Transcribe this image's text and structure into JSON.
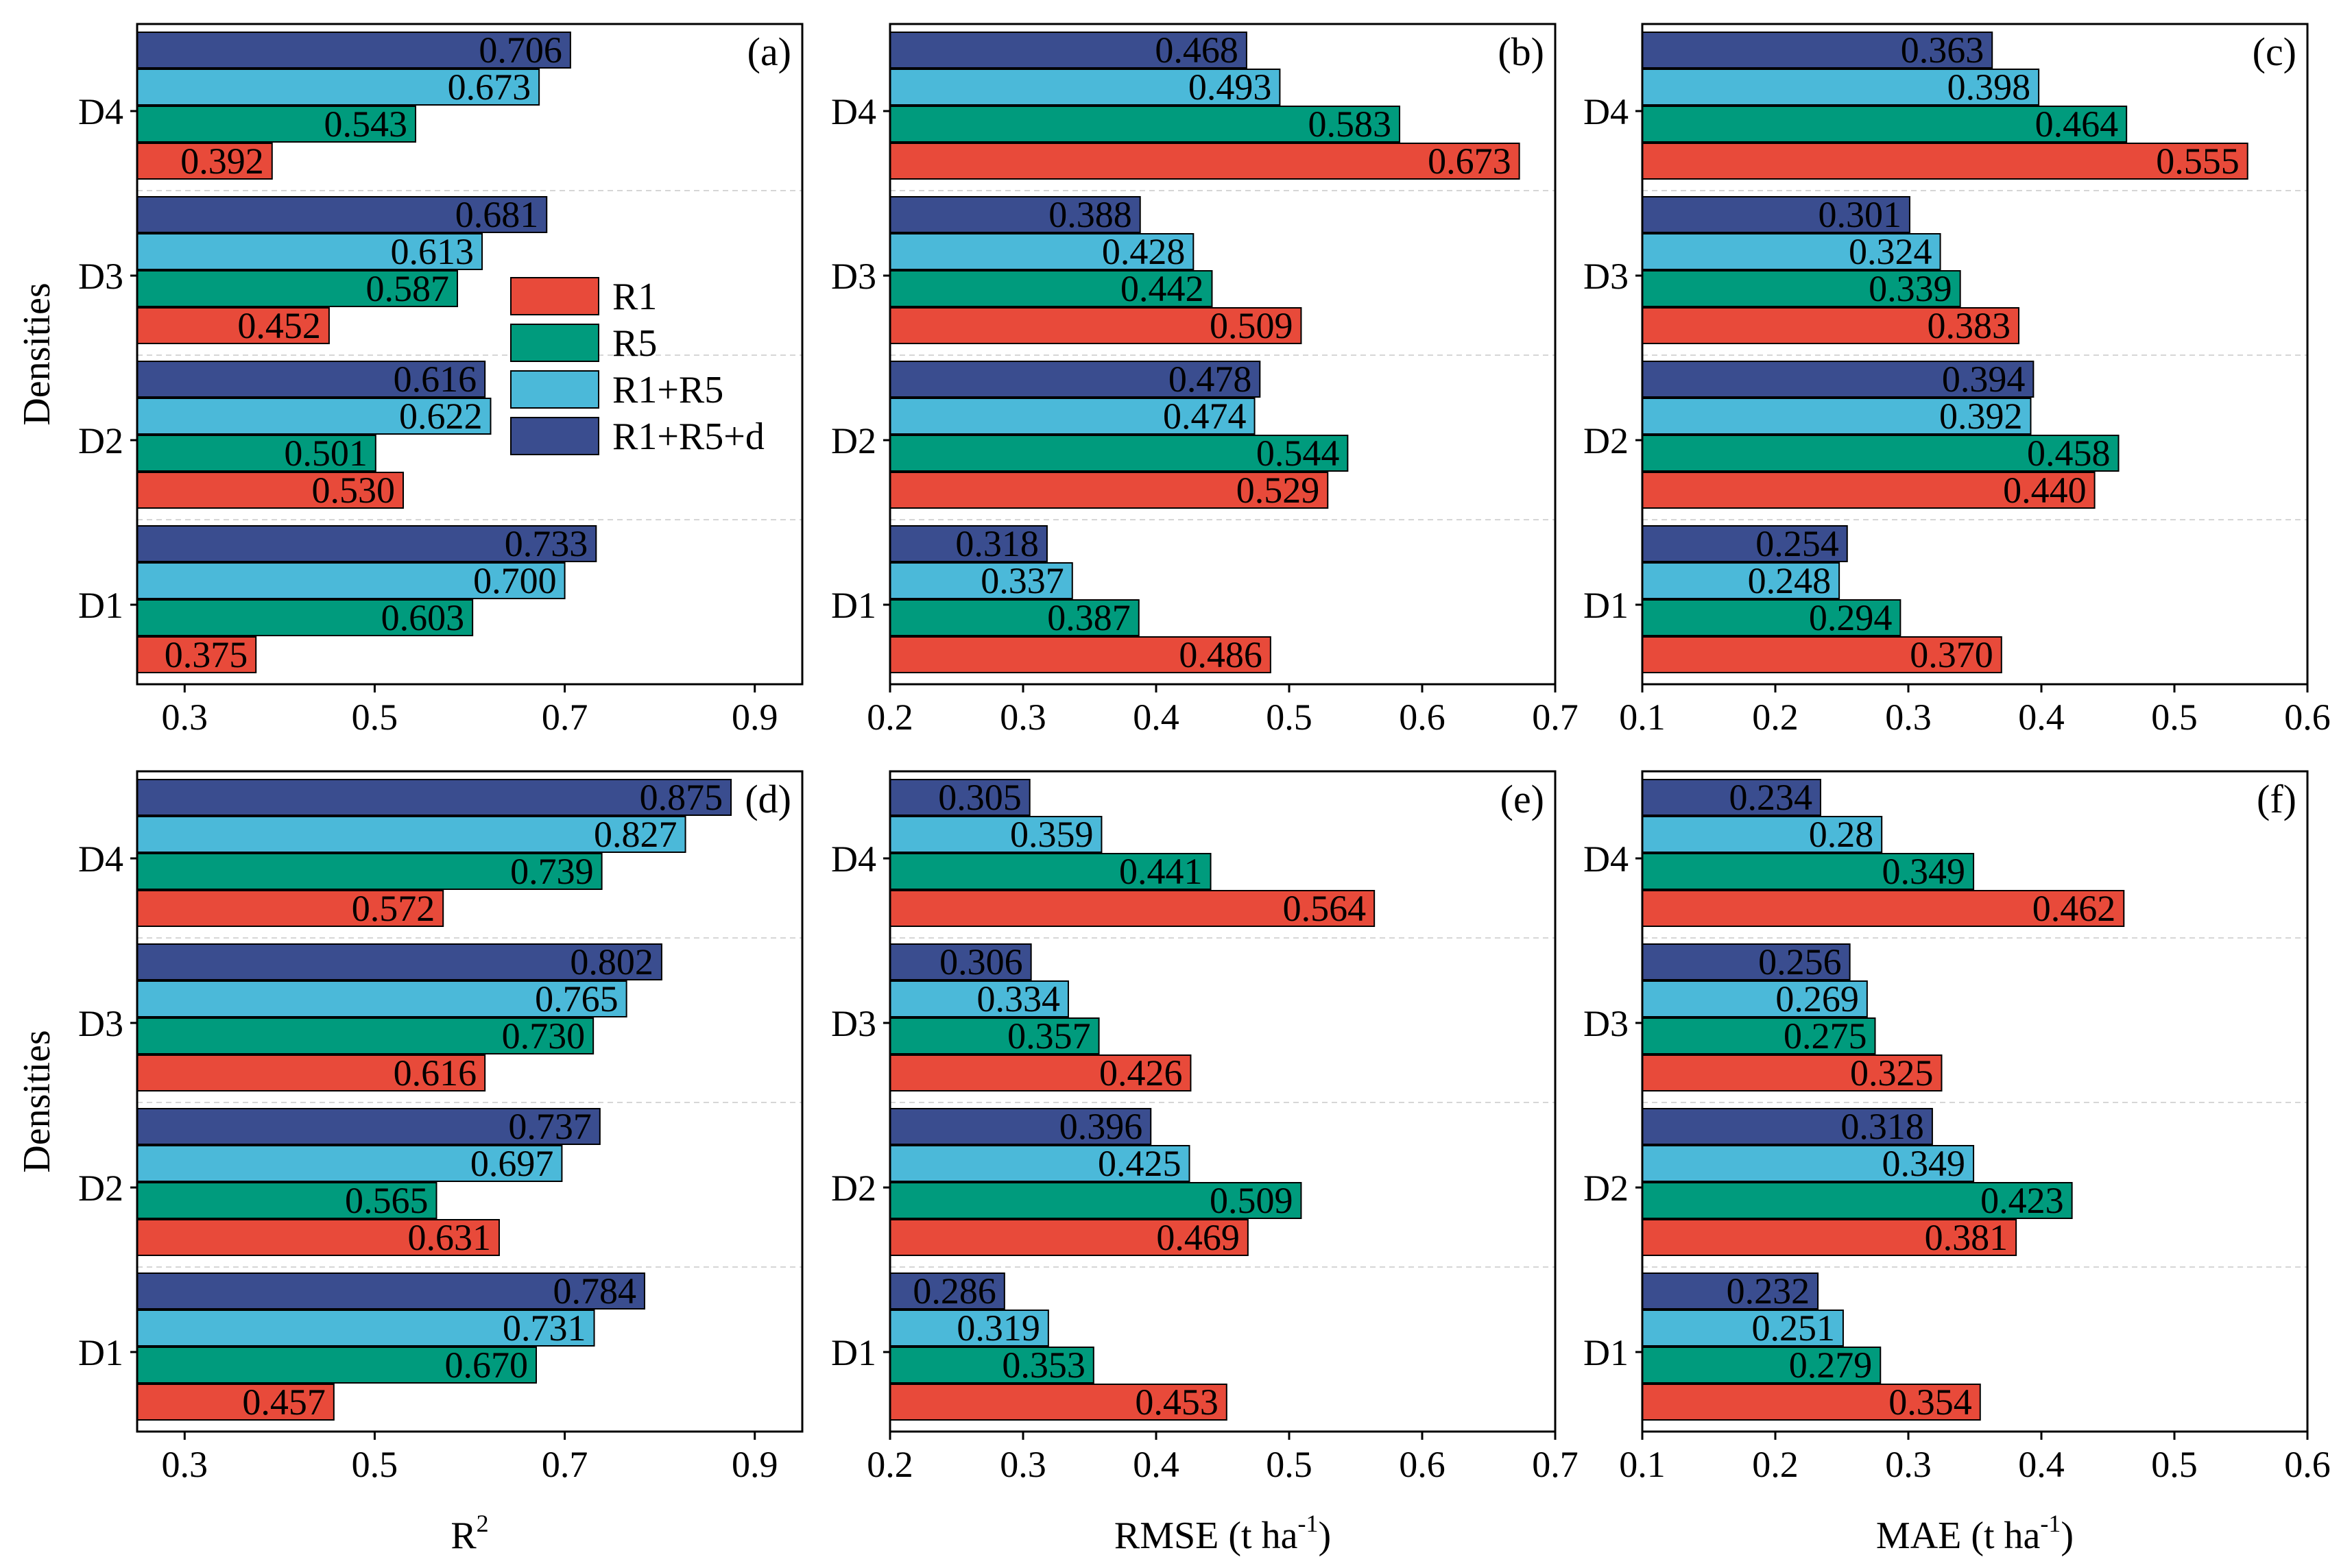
{
  "figure": {
    "series_names": [
      "R1",
      "R5",
      "R1+R5",
      "R1+R5+d"
    ],
    "categories": [
      "D1",
      "D2",
      "D3",
      "D4"
    ],
    "ylabel": "Densities",
    "colors": {
      "R1": "#E84A3A",
      "R5": "#009B7D",
      "R1+R5": "#4BB9D9",
      "R1+R5+d": "#3A4D8F"
    },
    "legend": {
      "panel": "(a)",
      "placement": "center-right",
      "entries": [
        "R1",
        "R5",
        "R1+R5",
        "R1+R5+d"
      ]
    }
  },
  "chart_data": [
    {
      "type": "bar",
      "orientation": "horizontal",
      "label": "(a)",
      "xlabel": "",
      "xlabel_sup": "",
      "xlim": [
        0.25,
        0.95
      ],
      "xticks": [
        0.3,
        0.5,
        0.7,
        0.9
      ],
      "xtick_labels": [
        "0.3",
        "0.5",
        "0.7",
        "0.9"
      ],
      "ylabel": "Densities",
      "categories": [
        "D1",
        "D2",
        "D3",
        "D4"
      ],
      "series": [
        {
          "name": "R1",
          "values": [
            0.375,
            0.53,
            0.452,
            0.392
          ],
          "labels": [
            "0.375",
            "0.530",
            "0.452",
            "0.392"
          ]
        },
        {
          "name": "R5",
          "values": [
            0.603,
            0.501,
            0.587,
            0.543
          ],
          "labels": [
            "0.603",
            "0.501",
            "0.587",
            "0.543"
          ]
        },
        {
          "name": "R1+R5",
          "values": [
            0.7,
            0.622,
            0.613,
            0.673
          ],
          "labels": [
            "0.700",
            "0.622",
            "0.613",
            "0.673"
          ]
        },
        {
          "name": "R1+R5+d",
          "values": [
            0.733,
            0.616,
            0.681,
            0.706
          ],
          "labels": [
            "0.733",
            "0.616",
            "0.681",
            "0.706"
          ]
        }
      ]
    },
    {
      "type": "bar",
      "orientation": "horizontal",
      "label": "(b)",
      "xlabel": "",
      "xlabel_sup": "",
      "xlim": [
        0.2,
        0.7
      ],
      "xticks": [
        0.2,
        0.3,
        0.4,
        0.5,
        0.6,
        0.7
      ],
      "xtick_labels": [
        "0.2",
        "0.3",
        "0.4",
        "0.5",
        "0.6",
        "0.7"
      ],
      "ylabel": "",
      "categories": [
        "D1",
        "D2",
        "D3",
        "D4"
      ],
      "series": [
        {
          "name": "R1",
          "values": [
            0.486,
            0.529,
            0.509,
            0.673
          ],
          "labels": [
            "0.486",
            "0.529",
            "0.509",
            "0.673"
          ]
        },
        {
          "name": "R5",
          "values": [
            0.387,
            0.544,
            0.442,
            0.583
          ],
          "labels": [
            "0.387",
            "0.544",
            "0.442",
            "0.583"
          ]
        },
        {
          "name": "R1+R5",
          "values": [
            0.337,
            0.474,
            0.428,
            0.493
          ],
          "labels": [
            "0.337",
            "0.474",
            "0.428",
            "0.493"
          ]
        },
        {
          "name": "R1+R5+d",
          "values": [
            0.318,
            0.478,
            0.388,
            0.468
          ],
          "labels": [
            "0.318",
            "0.478",
            "0.388",
            "0.468"
          ]
        }
      ]
    },
    {
      "type": "bar",
      "orientation": "horizontal",
      "label": "(c)",
      "xlabel": "",
      "xlabel_sup": "",
      "xlim": [
        0.1,
        0.6
      ],
      "xticks": [
        0.1,
        0.2,
        0.3,
        0.4,
        0.5,
        0.6
      ],
      "xtick_labels": [
        "0.1",
        "0.2",
        "0.3",
        "0.4",
        "0.5",
        "0.6"
      ],
      "ylabel": "",
      "categories": [
        "D1",
        "D2",
        "D3",
        "D4"
      ],
      "series": [
        {
          "name": "R1",
          "values": [
            0.37,
            0.44,
            0.383,
            0.555
          ],
          "labels": [
            "0.370",
            "0.440",
            "0.383",
            "0.555"
          ]
        },
        {
          "name": "R5",
          "values": [
            0.294,
            0.458,
            0.339,
            0.464
          ],
          "labels": [
            "0.294",
            "0.458",
            "0.339",
            "0.464"
          ]
        },
        {
          "name": "R1+R5",
          "values": [
            0.248,
            0.392,
            0.324,
            0.398
          ],
          "labels": [
            "0.248",
            "0.392",
            "0.324",
            "0.398"
          ]
        },
        {
          "name": "R1+R5+d",
          "values": [
            0.254,
            0.394,
            0.301,
            0.363
          ],
          "labels": [
            "0.254",
            "0.394",
            "0.301",
            "0.363"
          ]
        }
      ]
    },
    {
      "type": "bar",
      "orientation": "horizontal",
      "label": "(d)",
      "xlabel": "R",
      "xlabel_sup": "2",
      "xlim": [
        0.25,
        0.95
      ],
      "xticks": [
        0.3,
        0.5,
        0.7,
        0.9
      ],
      "xtick_labels": [
        "0.3",
        "0.5",
        "0.7",
        "0.9"
      ],
      "ylabel": "Densities",
      "categories": [
        "D1",
        "D2",
        "D3",
        "D4"
      ],
      "series": [
        {
          "name": "R1",
          "values": [
            0.457,
            0.631,
            0.616,
            0.572
          ],
          "labels": [
            "0.457",
            "0.631",
            "0.616",
            "0.572"
          ]
        },
        {
          "name": "R5",
          "values": [
            0.67,
            0.565,
            0.73,
            0.739
          ],
          "labels": [
            "0.670",
            "0.565",
            "0.730",
            "0.739"
          ]
        },
        {
          "name": "R1+R5",
          "values": [
            0.731,
            0.697,
            0.765,
            0.827
          ],
          "labels": [
            "0.731",
            "0.697",
            "0.765",
            "0.827"
          ]
        },
        {
          "name": "R1+R5+d",
          "values": [
            0.784,
            0.737,
            0.802,
            0.875
          ],
          "labels": [
            "0.784",
            "0.737",
            "0.802",
            "0.875"
          ]
        }
      ]
    },
    {
      "type": "bar",
      "orientation": "horizontal",
      "label": "(e)",
      "xlabel": "RMSE (t ha",
      "xlabel_sup": "-1",
      "xlabel_end": ")",
      "xlim": [
        0.2,
        0.7
      ],
      "xticks": [
        0.2,
        0.3,
        0.4,
        0.5,
        0.6,
        0.7
      ],
      "xtick_labels": [
        "0.2",
        "0.3",
        "0.4",
        "0.5",
        "0.6",
        "0.7"
      ],
      "ylabel": "",
      "categories": [
        "D1",
        "D2",
        "D3",
        "D4"
      ],
      "series": [
        {
          "name": "R1",
          "values": [
            0.453,
            0.469,
            0.426,
            0.564
          ],
          "labels": [
            "0.453",
            "0.469",
            "0.426",
            "0.564"
          ]
        },
        {
          "name": "R5",
          "values": [
            0.353,
            0.509,
            0.357,
            0.441
          ],
          "labels": [
            "0.353",
            "0.509",
            "0.357",
            "0.441"
          ]
        },
        {
          "name": "R1+R5",
          "values": [
            0.319,
            0.425,
            0.334,
            0.359
          ],
          "labels": [
            "0.319",
            "0.425",
            "0.334",
            "0.359"
          ]
        },
        {
          "name": "R1+R5+d",
          "values": [
            0.286,
            0.396,
            0.306,
            0.305
          ],
          "labels": [
            "0.286",
            "0.396",
            "0.306",
            "0.305"
          ]
        }
      ]
    },
    {
      "type": "bar",
      "orientation": "horizontal",
      "label": "(f)",
      "xlabel": "MAE (t ha",
      "xlabel_sup": "-1",
      "xlabel_end": ")",
      "xlim": [
        0.1,
        0.6
      ],
      "xticks": [
        0.1,
        0.2,
        0.3,
        0.4,
        0.5,
        0.6
      ],
      "xtick_labels": [
        "0.1",
        "0.2",
        "0.3",
        "0.4",
        "0.5",
        "0.6"
      ],
      "ylabel": "",
      "categories": [
        "D1",
        "D2",
        "D3",
        "D4"
      ],
      "series": [
        {
          "name": "R1",
          "values": [
            0.354,
            0.381,
            0.325,
            0.462
          ],
          "labels": [
            "0.354",
            "0.381",
            "0.325",
            "0.462"
          ]
        },
        {
          "name": "R5",
          "values": [
            0.279,
            0.423,
            0.275,
            0.349
          ],
          "labels": [
            "0.279",
            "0.423",
            "0.275",
            "0.349"
          ]
        },
        {
          "name": "R1+R5",
          "values": [
            0.251,
            0.349,
            0.269,
            0.28
          ],
          "labels": [
            "0.251",
            "0.349",
            "0.269",
            "0.28"
          ]
        },
        {
          "name": "R1+R5+d",
          "values": [
            0.232,
            0.318,
            0.256,
            0.234
          ],
          "labels": [
            "0.232",
            "0.318",
            "0.256",
            "0.234"
          ]
        }
      ]
    }
  ]
}
